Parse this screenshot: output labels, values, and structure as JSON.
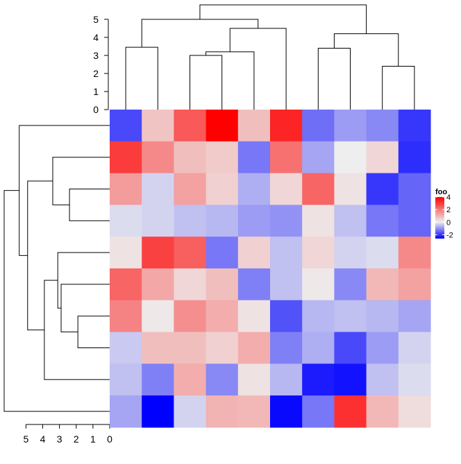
{
  "chart_data": {
    "type": "heatmap",
    "title": "",
    "xlabel": "",
    "ylabel": "",
    "rows": 10,
    "cols": 10,
    "values": [
      [
        -1.8,
        0.7,
        2.5,
        4.0,
        0.8,
        3.4,
        -1.4,
        -0.9,
        -1.1,
        -2.0
      ],
      [
        3.0,
        1.7,
        0.8,
        0.6,
        -1.3,
        2.1,
        -0.8,
        0.0,
        0.4,
        -2.1
      ],
      [
        1.4,
        -0.3,
        1.3,
        0.5,
        -0.7,
        0.4,
        2.3,
        0.2,
        -2.0,
        -1.5
      ],
      [
        -0.2,
        -0.3,
        -0.5,
        -0.6,
        -0.9,
        -1.0,
        0.2,
        -0.5,
        -1.3,
        -1.5
      ],
      [
        0.2,
        2.9,
        2.4,
        -1.3,
        0.5,
        -0.5,
        0.4,
        -0.3,
        -0.2,
        1.7
      ],
      [
        2.3,
        1.2,
        0.4,
        0.8,
        -1.2,
        -0.5,
        0.1,
        -1.1,
        0.9,
        1.3
      ],
      [
        1.8,
        0.1,
        1.6,
        1.1,
        0.2,
        -1.7,
        -0.6,
        -0.5,
        -0.6,
        -0.8
      ],
      [
        -0.4,
        0.8,
        0.8,
        0.5,
        1.1,
        -1.2,
        -0.7,
        -1.8,
        -0.9,
        -0.3
      ],
      [
        -0.5,
        -1.2,
        1.1,
        -1.1,
        0.2,
        -0.6,
        -2.3,
        -2.4,
        -0.5,
        -0.2
      ],
      [
        -0.8,
        -2.6,
        -0.3,
        1.0,
        0.9,
        -2.5,
        -1.3,
        3.2,
        0.9,
        0.3
      ]
    ],
    "color_scale": {
      "low": "#0000ff",
      "mid": "#eeeeee",
      "high": "#ff0000",
      "domain": [
        -2.6,
        0,
        4.0
      ]
    },
    "legend": {
      "title": "foo",
      "ticks": [
        4,
        2,
        0,
        -2
      ],
      "position": "right"
    },
    "col_dendrogram": {
      "axis_ticks": [
        0,
        1,
        2,
        3,
        4,
        5
      ],
      "max_height": 5.8,
      "merges": [
        [
          -9,
          -10,
          2.4
        ],
        [
          -7,
          1,
          3.4
        ],
        [
          -1,
          -2,
          3.45
        ],
        [
          -3,
          -4,
          3.0
        ],
        [
          4,
          -5,
          3.2
        ],
        [
          5,
          -6,
          4.5
        ],
        [
          3,
          6,
          5.0
        ],
        [
          2,
          7,
          5.8
        ]
      ],
      "merges_extra": [
        [
          -8,
          2,
          4.2
        ]
      ]
    },
    "row_dendrogram": {
      "axis_ticks": [
        5,
        4,
        3,
        2,
        1,
        0
      ],
      "max_height": 6.3,
      "merges": [
        [
          -7,
          -8,
          1.9
        ],
        [
          -6,
          1,
          2.9
        ],
        [
          -5,
          2,
          3.1
        ],
        [
          -3,
          -4,
          2.4
        ],
        [
          -2,
          4,
          3.4
        ],
        [
          -9,
          3,
          3.9
        ],
        [
          5,
          6,
          4.9
        ],
        [
          -1,
          7,
          5.4
        ],
        [
          8,
          -10,
          6.3
        ]
      ]
    }
  }
}
